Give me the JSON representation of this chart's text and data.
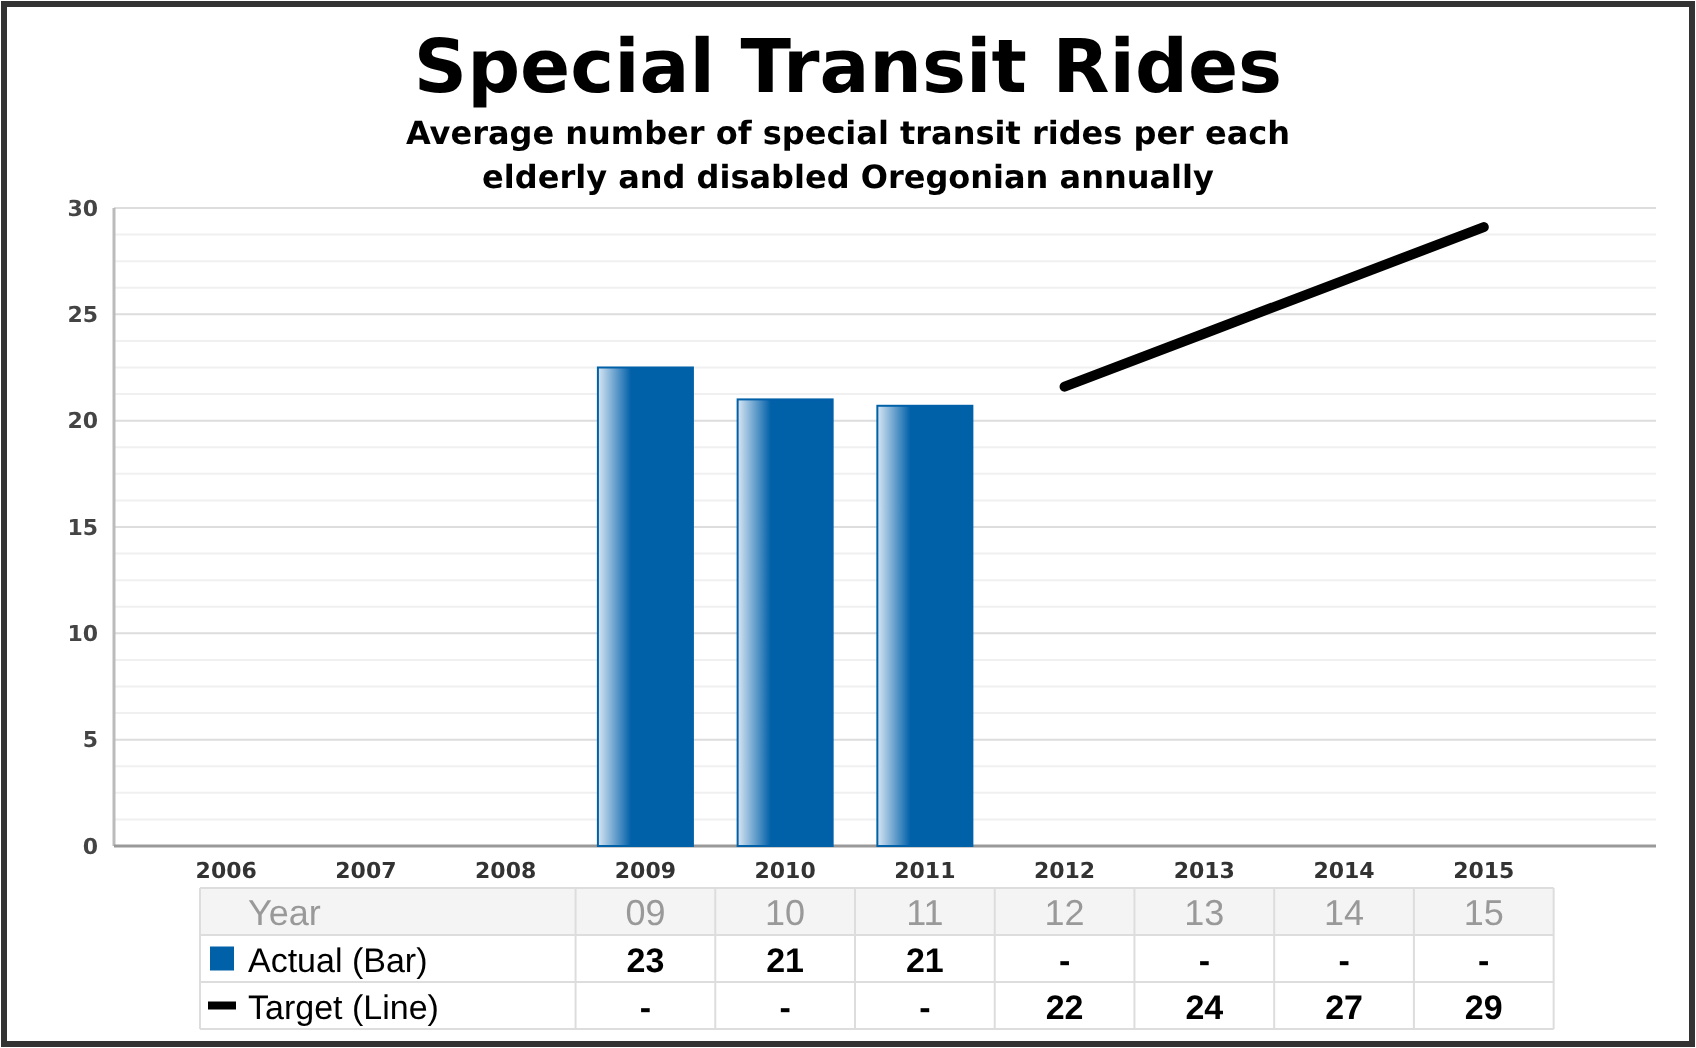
{
  "chart_data": {
    "type": "bar",
    "title": "Special Transit Rides",
    "subtitle": "Average number of special transit rides per each elderly and disabled Oregonian annually",
    "categories": [
      "2006",
      "2007",
      "2008",
      "2009",
      "2010",
      "2011",
      "2012",
      "2013",
      "2014",
      "2015"
    ],
    "series": [
      {
        "name": "Actual (Bar)",
        "color": "#0060a8",
        "values": [
          null,
          null,
          null,
          22.5,
          21.0,
          20.7,
          null,
          null,
          null,
          null
        ],
        "value_labels": [
          null,
          null,
          null,
          "23",
          "21",
          "21",
          "-",
          "-",
          "-",
          "-"
        ]
      },
      {
        "name": "Target (Line)",
        "type": "line",
        "color": "#000000",
        "values": [
          null,
          null,
          null,
          null,
          null,
          null,
          21.6,
          24.1,
          26.6,
          29.1
        ],
        "value_labels": [
          null,
          null,
          null,
          "-",
          "-",
          "-",
          "22",
          "24",
          "27",
          "29"
        ]
      }
    ],
    "annotations": [
      "Year",
      "09",
      "10",
      "11",
      "12",
      "13",
      "14",
      "15"
    ],
    "ylim": [
      0,
      30
    ],
    "yticks": [
      0,
      5,
      10,
      15,
      20,
      25,
      30
    ],
    "grid": "y",
    "legend": "bottom left",
    "marker": "none",
    "line_style": "solid"
  }
}
